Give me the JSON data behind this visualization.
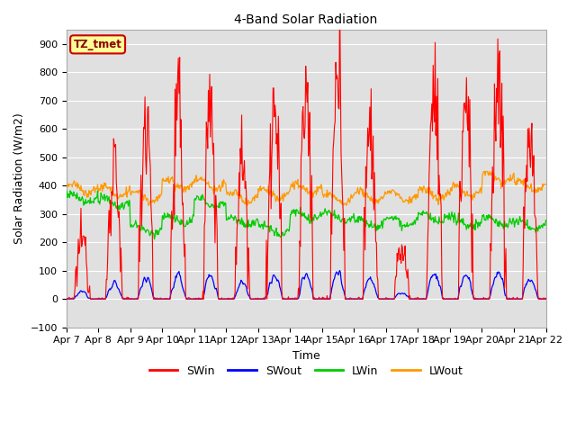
{
  "title": "4-Band Solar Radiation",
  "xlabel": "Time",
  "ylabel": "Solar Radiation (W/m2)",
  "ylim": [
    -100,
    950
  ],
  "background_color": "#ffffff",
  "plot_bg_color": "#e0e0e0",
  "grid_color": "#ffffff",
  "annotation_text": "TZ_tmet",
  "annotation_bg": "#ffff99",
  "annotation_border": "#cc0000",
  "x_tick_labels": [
    "Apr 7",
    "Apr 8",
    "Apr 9",
    "Apr 10",
    "Apr 11",
    "Apr 12",
    "Apr 13",
    "Apr 14",
    "Apr 15",
    "Apr 16",
    "Apr 17",
    "Apr 18",
    "Apr 19",
    "Apr 20",
    "Apr 21",
    "Apr 22"
  ],
  "colors": {
    "SWin": "#ff0000",
    "SWout": "#0000ff",
    "LWin": "#00cc00",
    "LWout": "#ff9900"
  },
  "legend_labels": [
    "SWin",
    "SWout",
    "LWin",
    "LWout"
  ]
}
